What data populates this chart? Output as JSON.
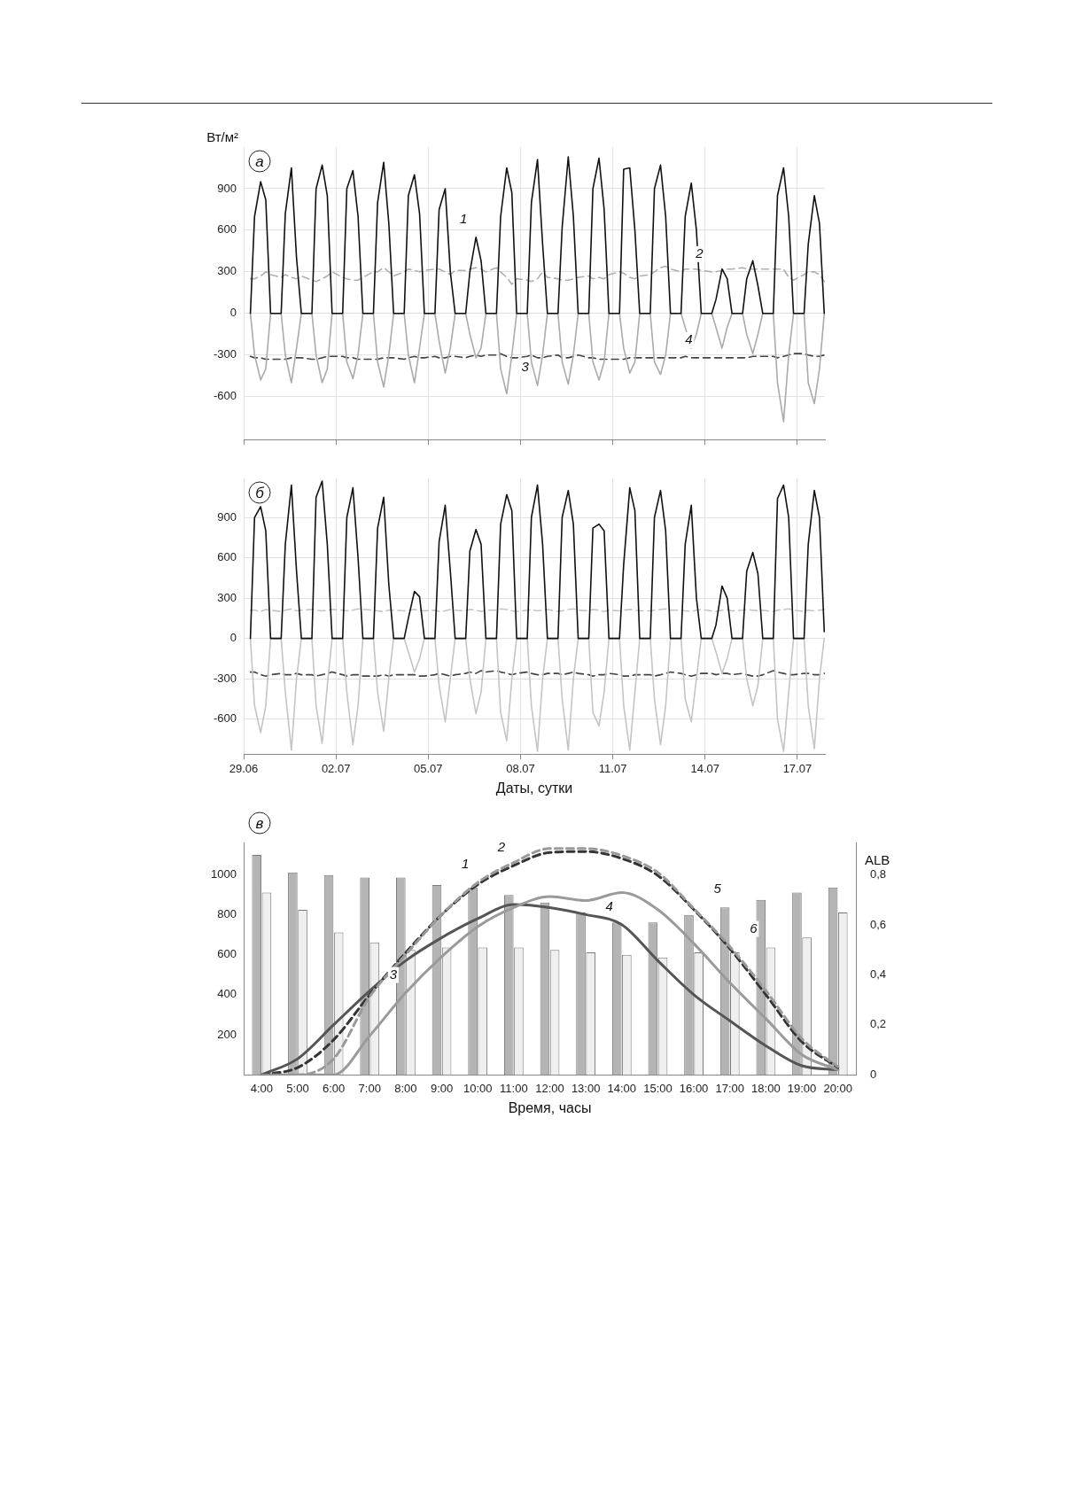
{
  "chart_data": [
    {
      "type": "line",
      "title": "а",
      "ylabel": "Вт/м²",
      "xlim": [
        "--06-29",
        "--07-17T21:30"
      ],
      "ylim": [
        -910,
        1200
      ],
      "xticks": [
        {
          "value": "--06-29",
          "label": "29.06"
        },
        {
          "value": "--07-02",
          "label": "02.07"
        },
        {
          "value": "--07-05",
          "label": "05.07"
        },
        {
          "value": "--07-08",
          "label": "08.07"
        },
        {
          "value": "--07-11",
          "label": "11.07"
        },
        {
          "value": "--07-14",
          "label": "14.07"
        },
        {
          "value": "--07-17",
          "label": "17.07"
        }
      ],
      "yticks": [
        -600,
        -300,
        0,
        300,
        600,
        900
      ],
      "grid": true,
      "legend": false,
      "tick_labels": "y",
      "marker": "none",
      "x": [
        "--06-29T05:15",
        "--06-29T08:30",
        "--06-29T13:15",
        "--06-29T17:15",
        "--06-29T21:00",
        "--06-30T05:15",
        "--06-30T08:30",
        "--06-30T13:15",
        "--06-30T17:15",
        "--06-30T21:00",
        "--07-01T05:15",
        "--07-01T08:30",
        "--07-01T13:15",
        "--07-01T17:15",
        "--07-01T21:00",
        "--07-02T05:15",
        "--07-02T08:30",
        "--07-02T13:15",
        "--07-02T17:15",
        "--07-02T21:00",
        "--07-03T05:15",
        "--07-03T08:30",
        "--07-03T13:15",
        "--07-03T17:15",
        "--07-03T21:00",
        "--07-04T05:15",
        "--07-04T08:30",
        "--07-04T13:15",
        "--07-04T17:15",
        "--07-04T21:00",
        "--07-05T05:15",
        "--07-05T08:30",
        "--07-05T13:15",
        "--07-05T17:15",
        "--07-05T21:00",
        "--07-06T05:15",
        "--07-06T08:30",
        "--07-06T13:15",
        "--07-06T17:15",
        "--07-06T21:00",
        "--07-07T05:15",
        "--07-07T08:30",
        "--07-07T13:15",
        "--07-07T17:15",
        "--07-07T21:00",
        "--07-08T05:15",
        "--07-08T08:30",
        "--07-08T13:15",
        "--07-08T17:15",
        "--07-08T21:00",
        "--07-09T05:15",
        "--07-09T08:30",
        "--07-09T13:15",
        "--07-09T17:15",
        "--07-09T21:00",
        "--07-10T05:15",
        "--07-10T08:30",
        "--07-10T13:15",
        "--07-10T17:15",
        "--07-10T21:00",
        "--07-11T05:15",
        "--07-11T08:30",
        "--07-11T13:15",
        "--07-11T17:15",
        "--07-11T21:00",
        "--07-12T05:15",
        "--07-12T08:30",
        "--07-12T13:15",
        "--07-12T17:15",
        "--07-12T21:00",
        "--07-13T05:15",
        "--07-13T08:30",
        "--07-13T13:15",
        "--07-13T17:15",
        "--07-13T21:00",
        "--07-14T05:15",
        "--07-14T08:30",
        "--07-14T13:15",
        "--07-14T17:15",
        "--07-14T21:00",
        "--07-15T05:15",
        "--07-15T08:30",
        "--07-15T13:15",
        "--07-15T17:15",
        "--07-15T21:00",
        "--07-16T05:15",
        "--07-16T08:30",
        "--07-16T13:15",
        "--07-16T17:15",
        "--07-16T21:00",
        "--07-17T05:15",
        "--07-17T08:30",
        "--07-17T13:15",
        "--07-17T17:15",
        "--07-17T21:00"
      ],
      "series": [
        {
          "color": "#111111",
          "line_style": "solid",
          "values": [
            0,
            700,
            950,
            820,
            0,
            0,
            720,
            1050,
            400,
            0,
            0,
            900,
            1070,
            850,
            0,
            0,
            900,
            1030,
            700,
            0,
            0,
            800,
            1090,
            650,
            0,
            0,
            850,
            1000,
            720,
            0,
            0,
            750,
            900,
            300,
            0,
            0,
            300,
            550,
            380,
            0,
            0,
            700,
            1050,
            870,
            0,
            0,
            800,
            1110,
            500,
            0,
            0,
            620,
            1130,
            700,
            0,
            0,
            900,
            1120,
            750,
            0,
            0,
            1040,
            1050,
            600,
            0,
            0,
            900,
            1070,
            700,
            0,
            0,
            700,
            940,
            600,
            0,
            0,
            100,
            320,
            250,
            0,
            0,
            250,
            380,
            200,
            0,
            0,
            850,
            1050,
            700,
            0,
            0,
            500,
            850,
            650,
            0
          ]
        },
        {
          "color": "#b0b0b0",
          "line_style": "dashed",
          "values": [
            250,
            250,
            270,
            300,
            280,
            260,
            280,
            260,
            250,
            270,
            240,
            230,
            250,
            270,
            300,
            260,
            250,
            240,
            240,
            260,
            300,
            300,
            330,
            300,
            270,
            300,
            320,
            310,
            300,
            310,
            320,
            320,
            300,
            280,
            310,
            310,
            320,
            330,
            320,
            300,
            330,
            300,
            260,
            210,
            250,
            240,
            230,
            250,
            300,
            260,
            250,
            240,
            240,
            250,
            260,
            270,
            250,
            260,
            250,
            280,
            300,
            290,
            260,
            250,
            270,
            280,
            300,
            330,
            340,
            320,
            300,
            320,
            320,
            320,
            310,
            300,
            300,
            310,
            320,
            320,
            330,
            320,
            320,
            320,
            320,
            320,
            320,
            320,
            260,
            240,
            280,
            300,
            300,
            280,
            230
          ]
        },
        {
          "color": "#aaaaaa",
          "line_style": "solid",
          "values": [
            0,
            -300,
            -480,
            -400,
            0,
            0,
            -300,
            -500,
            -250,
            0,
            0,
            -300,
            -500,
            -400,
            0,
            0,
            -350,
            -470,
            -300,
            0,
            0,
            -350,
            -530,
            -300,
            0,
            0,
            -300,
            -500,
            -250,
            0,
            0,
            -200,
            -430,
            -250,
            0,
            0,
            -150,
            -320,
            -250,
            0,
            0,
            -400,
            -580,
            -300,
            0,
            0,
            -350,
            -520,
            -300,
            0,
            0,
            -350,
            -510,
            -300,
            0,
            0,
            -350,
            -480,
            -350,
            0,
            0,
            -250,
            -430,
            -350,
            0,
            0,
            -350,
            -440,
            -300,
            0,
            0,
            -100,
            -250,
            -150,
            0,
            0,
            -100,
            -250,
            -100,
            0,
            0,
            -150,
            -290,
            -150,
            0,
            0,
            -500,
            -780,
            -300,
            0,
            0,
            -500,
            -650,
            -400,
            0
          ]
        },
        {
          "color": "#444444",
          "line_style": "dashed",
          "values": [
            -310,
            -320,
            -320,
            -330,
            -330,
            -330,
            -330,
            -320,
            -320,
            -320,
            -330,
            -330,
            -320,
            -310,
            -310,
            -310,
            -320,
            -320,
            -330,
            -330,
            -330,
            -330,
            -320,
            -320,
            -320,
            -330,
            -320,
            -310,
            -320,
            -320,
            -310,
            -320,
            -320,
            -310,
            -310,
            -320,
            -310,
            -300,
            -310,
            -300,
            -300,
            -290,
            -310,
            -320,
            -320,
            -310,
            -300,
            -320,
            -320,
            -310,
            -300,
            -320,
            -320,
            -310,
            -300,
            -320,
            -320,
            -330,
            -330,
            -330,
            -330,
            -330,
            -320,
            -320,
            -320,
            -320,
            -320,
            -320,
            -320,
            -320,
            -320,
            -310,
            -320,
            -320,
            -320,
            -320,
            -320,
            -320,
            -320,
            -320,
            -320,
            -320,
            -310,
            -310,
            -310,
            -310,
            -320,
            -310,
            -300,
            -290,
            -290,
            -300,
            -310,
            -310,
            -300
          ]
        }
      ],
      "annotations": [
        {
          "text": "1",
          "x": "--07-06T13:15",
          "y": 550
        },
        {
          "text": "2",
          "x": "--07-14T05:15",
          "y": 300
        },
        {
          "text": "3",
          "x": "--07-08T13:15",
          "y": -520
        },
        {
          "text": "4",
          "x": "--07-13T21:00",
          "y": -320
        }
      ]
    },
    {
      "type": "line",
      "title": "б",
      "xlabel": "Даты, сутки",
      "xlim": [
        "--06-29",
        "--07-17T21:30"
      ],
      "ylim": [
        -860,
        1190
      ],
      "xticks": [
        {
          "value": "--06-29",
          "label": "29.06"
        },
        {
          "value": "--07-02",
          "label": "02.07"
        },
        {
          "value": "--07-05",
          "label": "05.07"
        },
        {
          "value": "--07-08",
          "label": "08.07"
        },
        {
          "value": "--07-11",
          "label": "11.07"
        },
        {
          "value": "--07-14",
          "label": "14.07"
        },
        {
          "value": "--07-17",
          "label": "17.07"
        }
      ],
      "yticks": [
        -600,
        -300,
        0,
        300,
        600,
        900
      ],
      "grid": true,
      "legend": false,
      "marker": "none",
      "x": [
        "--06-29T05:15",
        "--06-29T08:30",
        "--06-29T13:15",
        "--06-29T17:15",
        "--06-29T21:00",
        "--06-30T05:15",
        "--06-30T08:30",
        "--06-30T13:15",
        "--06-30T17:15",
        "--06-30T21:00",
        "--07-01T05:15",
        "--07-01T08:30",
        "--07-01T13:15",
        "--07-01T17:15",
        "--07-01T21:00",
        "--07-02T05:15",
        "--07-02T08:30",
        "--07-02T13:15",
        "--07-02T17:15",
        "--07-02T21:00",
        "--07-03T05:15",
        "--07-03T08:30",
        "--07-03T13:15",
        "--07-03T17:15",
        "--07-03T21:00",
        "--07-04T05:15",
        "--07-04T08:30",
        "--07-04T13:15",
        "--07-04T17:15",
        "--07-04T21:00",
        "--07-05T05:15",
        "--07-05T08:30",
        "--07-05T13:15",
        "--07-05T17:15",
        "--07-05T21:00",
        "--07-06T05:15",
        "--07-06T08:30",
        "--07-06T13:15",
        "--07-06T17:15",
        "--07-06T21:00",
        "--07-07T05:15",
        "--07-07T08:30",
        "--07-07T13:15",
        "--07-07T17:15",
        "--07-07T21:00",
        "--07-08T05:15",
        "--07-08T08:30",
        "--07-08T13:15",
        "--07-08T17:15",
        "--07-08T21:00",
        "--07-09T05:15",
        "--07-09T08:30",
        "--07-09T13:15",
        "--07-09T17:15",
        "--07-09T21:00",
        "--07-10T05:15",
        "--07-10T08:30",
        "--07-10T13:15",
        "--07-10T17:15",
        "--07-10T21:00",
        "--07-11T05:15",
        "--07-11T08:30",
        "--07-11T13:15",
        "--07-11T17:15",
        "--07-11T21:00",
        "--07-12T05:15",
        "--07-12T08:30",
        "--07-12T13:15",
        "--07-12T17:15",
        "--07-12T21:00",
        "--07-13T05:15",
        "--07-13T08:30",
        "--07-13T13:15",
        "--07-13T17:15",
        "--07-13T21:00",
        "--07-14T05:15",
        "--07-14T08:30",
        "--07-14T13:15",
        "--07-14T17:15",
        "--07-14T21:00",
        "--07-15T05:15",
        "--07-15T08:30",
        "--07-15T13:15",
        "--07-15T17:15",
        "--07-15T21:00",
        "--07-16T05:15",
        "--07-16T08:30",
        "--07-16T13:15",
        "--07-16T17:15",
        "--07-16T21:00",
        "--07-17T05:15",
        "--07-17T08:30",
        "--07-17T13:15",
        "--07-17T17:15",
        "--07-17T21:00"
      ],
      "series": [
        {
          "color": "#111111",
          "line_style": "solid",
          "values": [
            0,
            900,
            980,
            800,
            0,
            0,
            700,
            1140,
            500,
            0,
            0,
            1050,
            1170,
            700,
            0,
            0,
            900,
            1120,
            600,
            0,
            0,
            820,
            1050,
            400,
            0,
            0,
            150,
            350,
            310,
            0,
            0,
            720,
            990,
            500,
            0,
            0,
            650,
            810,
            700,
            0,
            0,
            850,
            1070,
            950,
            0,
            0,
            900,
            1140,
            700,
            0,
            0,
            900,
            1100,
            850,
            0,
            0,
            820,
            850,
            800,
            0,
            0,
            550,
            1120,
            950,
            0,
            0,
            900,
            1100,
            800,
            0,
            0,
            700,
            990,
            300,
            0,
            0,
            100,
            390,
            300,
            0,
            0,
            500,
            640,
            480,
            0,
            0,
            1040,
            1140,
            900,
            0,
            0,
            700,
            1100,
            900,
            50
          ]
        },
        {
          "color": "#c4c4c4",
          "line_style": "dashed",
          "values": [
            210,
            210,
            200,
            215,
            210,
            200,
            210,
            220,
            205,
            210,
            215,
            210,
            205,
            210,
            215,
            210,
            205,
            210,
            220,
            215,
            210,
            205,
            200,
            210,
            210,
            205,
            210,
            215,
            210,
            205,
            210,
            200,
            205,
            215,
            210,
            205,
            215,
            210,
            200,
            210,
            210,
            220,
            215,
            205,
            200,
            210,
            215,
            205,
            210,
            215,
            200,
            205,
            215,
            220,
            210,
            205,
            215,
            210,
            200,
            210,
            205,
            210,
            215,
            210,
            205,
            205,
            210,
            215,
            220,
            210,
            210,
            205,
            200,
            210,
            215,
            205,
            200,
            210,
            215,
            205,
            210,
            215,
            210,
            205,
            210,
            200,
            210,
            215,
            220,
            210,
            200,
            210,
            205,
            210,
            215
          ]
        },
        {
          "color": "#c4c4c4",
          "line_style": "solid",
          "values": [
            0,
            -500,
            -700,
            -500,
            0,
            0,
            -400,
            -830,
            -300,
            0,
            0,
            -500,
            -780,
            -350,
            0,
            0,
            -400,
            -790,
            -500,
            0,
            0,
            -400,
            -690,
            -300,
            0,
            0,
            -100,
            -250,
            -150,
            0,
            0,
            -350,
            -620,
            -300,
            0,
            0,
            -300,
            -560,
            -400,
            0,
            0,
            -550,
            -760,
            -300,
            0,
            0,
            -500,
            -840,
            -300,
            0,
            0,
            -450,
            -830,
            -300,
            0,
            0,
            -550,
            -650,
            -400,
            0,
            0,
            -500,
            -830,
            -400,
            0,
            0,
            -450,
            -790,
            -500,
            0,
            0,
            -450,
            -620,
            -300,
            0,
            0,
            -100,
            -260,
            -150,
            0,
            0,
            -300,
            -500,
            -350,
            0,
            0,
            -600,
            -840,
            -400,
            0,
            0,
            -500,
            -820,
            -300,
            0
          ]
        },
        {
          "color": "#444444",
          "line_style": "dashed",
          "values": [
            -250,
            -250,
            -270,
            -280,
            -270,
            -260,
            -270,
            -270,
            -260,
            -270,
            -270,
            -280,
            -270,
            -260,
            -250,
            -270,
            -280,
            -270,
            -270,
            -280,
            -280,
            -280,
            -270,
            -280,
            -270,
            -270,
            -270,
            -270,
            -280,
            -280,
            -270,
            -260,
            -270,
            -280,
            -270,
            -260,
            -250,
            -260,
            -240,
            -250,
            -240,
            -250,
            -260,
            -270,
            -260,
            -250,
            -260,
            -270,
            -270,
            -260,
            -260,
            -270,
            -260,
            -250,
            -260,
            -270,
            -280,
            -270,
            -270,
            -260,
            -270,
            -280,
            -280,
            -270,
            -270,
            -270,
            -280,
            -270,
            -260,
            -250,
            -260,
            -270,
            -280,
            -270,
            -260,
            -260,
            -270,
            -260,
            -260,
            -270,
            -260,
            -270,
            -280,
            -280,
            -270,
            -240,
            -250,
            -260,
            -270,
            -270,
            -260,
            -260,
            -270,
            -270,
            -260
          ]
        }
      ]
    },
    {
      "type": "bar",
      "title": "в",
      "xlabel": "Время, часы",
      "y2label": "ALB",
      "categories": [
        "4:00",
        "5:00",
        "6:00",
        "7:00",
        "8:00",
        "9:00",
        "10:00",
        "11:00",
        "12:00",
        "13:00",
        "14:00",
        "15:00",
        "16:00",
        "17:00",
        "18:00",
        "19:00",
        "20:00"
      ],
      "ylim": [
        0,
        1160
      ],
      "yticks": [
        200,
        400,
        600,
        800,
        1000
      ],
      "y2lim": [
        0,
        0.93
      ],
      "y2ticks": [
        0,
        {
          "value": 0.2,
          "label": "0,2"
        },
        {
          "value": 0.4,
          "label": "0,4"
        },
        {
          "value": 0.6,
          "label": "0,6"
        },
        {
          "value": 0.8,
          "label": "0,8"
        }
      ],
      "grid": false,
      "legend": false,
      "marker": "none",
      "series": [
        {
          "type": "bar",
          "axis": "y2",
          "color": "#b4b4b4",
          "values": [
            0.88,
            0.81,
            0.8,
            0.79,
            0.79,
            0.76,
            0.75,
            0.72,
            0.69,
            0.65,
            0.61,
            0.61,
            0.64,
            0.67,
            0.7,
            0.73,
            0.75
          ]
        },
        {
          "type": "bar",
          "axis": "y2",
          "color": "#efefef",
          "values": [
            0.73,
            0.66,
            0.57,
            0.53,
            0.5,
            0.51,
            0.51,
            0.51,
            0.5,
            0.49,
            0.48,
            0.47,
            0.49,
            0.49,
            0.51,
            0.55,
            0.65
          ]
        },
        {
          "type": "line",
          "color": "#9a9a9a",
          "line_style": "dashed",
          "values": [
            0,
            0,
            80,
            390,
            600,
            800,
            960,
            1060,
            1130,
            1130,
            1095,
            1010,
            830,
            640,
            420,
            180,
            40
          ]
        },
        {
          "type": "line",
          "color": "#333333",
          "line_style": "dashed",
          "values": [
            0,
            36,
            175,
            400,
            610,
            800,
            950,
            1045,
            1110,
            1115,
            1080,
            995,
            825,
            630,
            400,
            165,
            36
          ]
        },
        {
          "type": "line",
          "color": "#9a9a9a",
          "line_style": "solid",
          "values": [
            0,
            0,
            0,
            195,
            410,
            590,
            740,
            835,
            890,
            870,
            910,
            825,
            655,
            460,
            280,
            100,
            25
          ]
        },
        {
          "type": "line",
          "color": "#555555",
          "line_style": "solid",
          "values": [
            0,
            80,
            250,
            420,
            570,
            685,
            780,
            850,
            835,
            800,
            750,
            570,
            400,
            270,
            145,
            45,
            25
          ]
        }
      ],
      "annotations": [
        {
          "text": "1",
          "x": "10:00",
          "y": 960
        },
        {
          "text": "2",
          "x": "11:00",
          "y": 1045
        },
        {
          "text": "3",
          "x": "8:00",
          "y": 410
        },
        {
          "text": "4",
          "x": "14:00",
          "y": 750
        },
        {
          "text": "5",
          "x": "17:00",
          "y": 838
        },
        {
          "text": "6",
          "x": "18:00",
          "y": 640
        }
      ]
    }
  ]
}
